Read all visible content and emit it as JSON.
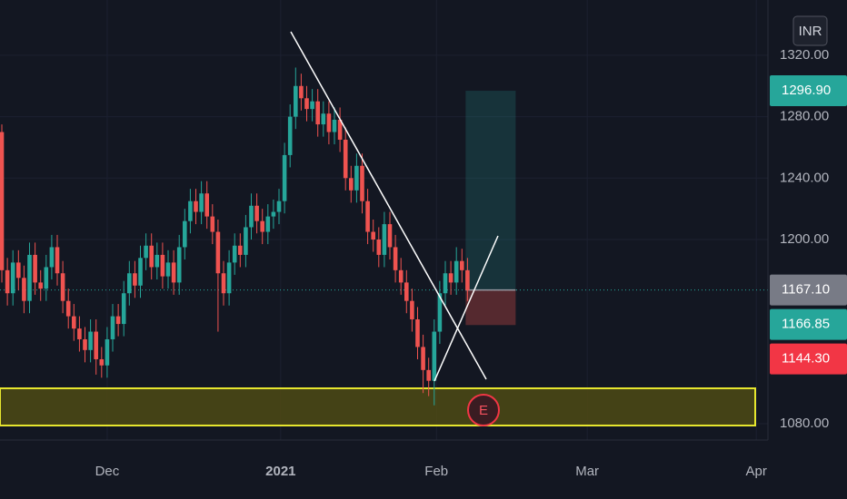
{
  "chart_data": {
    "type": "candlestick",
    "currency": "INR",
    "open": [
      1270,
      1180,
      1165,
      1185,
      1175,
      1160,
      1190,
      1172,
      1168,
      1182,
      1195,
      1178,
      1160,
      1150,
      1142,
      1135,
      1128,
      1140,
      1122,
      1118,
      1135,
      1150,
      1145,
      1165,
      1178,
      1170,
      1188,
      1196,
      1182,
      1190,
      1176,
      1185,
      1172,
      1195,
      1212,
      1225,
      1218,
      1230,
      1215,
      1205,
      1178,
      1165,
      1185,
      1196,
      1190,
      1208,
      1222,
      1212,
      1205,
      1215,
      1218,
      1225,
      1255,
      1280,
      1300,
      1292,
      1285,
      1290,
      1275,
      1282,
      1270,
      1278,
      1265,
      1240,
      1232,
      1248,
      1225,
      1205,
      1200,
      1190,
      1210,
      1195,
      1180,
      1172,
      1160,
      1148,
      1130,
      1115,
      1108,
      1140,
      1165,
      1178,
      1172,
      1186,
      1180
    ],
    "high": [
      1275,
      1188,
      1193,
      1193,
      1183,
      1198,
      1198,
      1180,
      1190,
      1203,
      1203,
      1186,
      1168,
      1158,
      1150,
      1143,
      1148,
      1148,
      1130,
      1143,
      1158,
      1158,
      1173,
      1186,
      1186,
      1196,
      1204,
      1204,
      1198,
      1198,
      1193,
      1193,
      1203,
      1220,
      1233,
      1233,
      1238,
      1238,
      1223,
      1213,
      1186,
      1193,
      1204,
      1204,
      1216,
      1230,
      1230,
      1220,
      1223,
      1226,
      1233,
      1263,
      1288,
      1312,
      1308,
      1300,
      1298,
      1298,
      1290,
      1290,
      1286,
      1286,
      1273,
      1248,
      1256,
      1256,
      1233,
      1213,
      1208,
      1218,
      1218,
      1203,
      1188,
      1180,
      1168,
      1156,
      1138,
      1123,
      1148,
      1173,
      1186,
      1186,
      1195,
      1194,
      1188
    ],
    "low": [
      1172,
      1157,
      1157,
      1167,
      1152,
      1152,
      1164,
      1160,
      1160,
      1174,
      1170,
      1152,
      1142,
      1134,
      1127,
      1120,
      1120,
      1112,
      1110,
      1110,
      1127,
      1137,
      1137,
      1157,
      1162,
      1162,
      1180,
      1174,
      1174,
      1168,
      1168,
      1164,
      1164,
      1187,
      1204,
      1210,
      1210,
      1207,
      1197,
      1140,
      1157,
      1157,
      1177,
      1182,
      1182,
      1200,
      1204,
      1197,
      1197,
      1207,
      1210,
      1217,
      1247,
      1272,
      1284,
      1277,
      1277,
      1267,
      1267,
      1262,
      1262,
      1257,
      1232,
      1224,
      1224,
      1217,
      1197,
      1192,
      1182,
      1182,
      1187,
      1172,
      1164,
      1152,
      1140,
      1122,
      1100,
      1098,
      1092,
      1132,
      1157,
      1164,
      1164,
      1172,
      1160
    ],
    "close": [
      1180,
      1165,
      1185,
      1175,
      1160,
      1190,
      1172,
      1168,
      1182,
      1195,
      1178,
      1160,
      1150,
      1142,
      1135,
      1128,
      1140,
      1122,
      1118,
      1135,
      1150,
      1145,
      1165,
      1178,
      1170,
      1188,
      1196,
      1182,
      1190,
      1176,
      1185,
      1172,
      1195,
      1212,
      1225,
      1218,
      1230,
      1215,
      1205,
      1178,
      1165,
      1185,
      1196,
      1190,
      1208,
      1222,
      1212,
      1205,
      1215,
      1218,
      1225,
      1255,
      1280,
      1300,
      1292,
      1285,
      1290,
      1275,
      1282,
      1270,
      1278,
      1265,
      1240,
      1232,
      1248,
      1225,
      1205,
      1200,
      1190,
      1210,
      1195,
      1180,
      1172,
      1160,
      1148,
      1130,
      1115,
      1108,
      1140,
      1165,
      1178,
      1172,
      1186,
      1180,
      1167
    ],
    "up_color": "#26a69a",
    "down_color": "#ef5350",
    "ylim": [
      1069.4,
      1356
    ],
    "yticks": [
      {
        "value": 1080,
        "label": "1080.00"
      },
      {
        "value": 1200,
        "label": "1200.00"
      },
      {
        "value": 1240,
        "label": "1240.00"
      },
      {
        "value": 1280,
        "label": "1280.00"
      },
      {
        "value": 1320,
        "label": "1320.00"
      }
    ],
    "xlim": [
      -0.33,
      138.2
    ],
    "xticks": [
      {
        "value": 19,
        "label": "Dec"
      },
      {
        "value": 50.3,
        "label": "2021"
      },
      {
        "value": 78.4,
        "label": "Feb"
      },
      {
        "value": 105.6,
        "label": "Mar"
      },
      {
        "value": 136.1,
        "label": "Apr"
      }
    ],
    "price_labels": [
      {
        "value": 1296.9,
        "label": "1296.90",
        "color": "#26a69a"
      },
      {
        "value": 1167.1,
        "label": "1167.10",
        "color": "#787b86"
      },
      {
        "value": 1166.85,
        "label": "1166.85",
        "color": "#26a69a"
      },
      {
        "value": 1144.3,
        "label": "1144.30",
        "color": "#f23645"
      }
    ],
    "event_marker": "E"
  }
}
